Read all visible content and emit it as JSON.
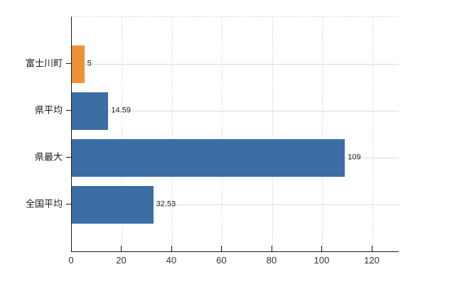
{
  "chart_data": {
    "type": "bar",
    "orientation": "horizontal",
    "title": "",
    "xlabel": "",
    "ylabel": "",
    "categories": [
      "富士川町",
      "県平均",
      "県最大",
      "全国平均"
    ],
    "values": [
      5,
      14.59,
      109,
      32.53
    ],
    "value_labels": [
      "5",
      "14.59",
      "109",
      "32.53"
    ],
    "bar_colors": [
      "#ED9237",
      "#3A6EA5",
      "#3A6EA5",
      "#3A6EA5"
    ],
    "x_ticks": [
      0,
      20,
      40,
      60,
      80,
      100,
      120
    ],
    "xlim": [
      0,
      130.5
    ],
    "grid": true,
    "legend": false,
    "style": {
      "bar_highlight_color": "#ED9237",
      "bar_default_color": "#3A6EA5",
      "grid_color": "#d9ded9",
      "axis_color": "#1a1a1a",
      "tick_label_color": "#333333",
      "value_label_color": "#222222",
      "background_color": "#ffffff"
    }
  }
}
